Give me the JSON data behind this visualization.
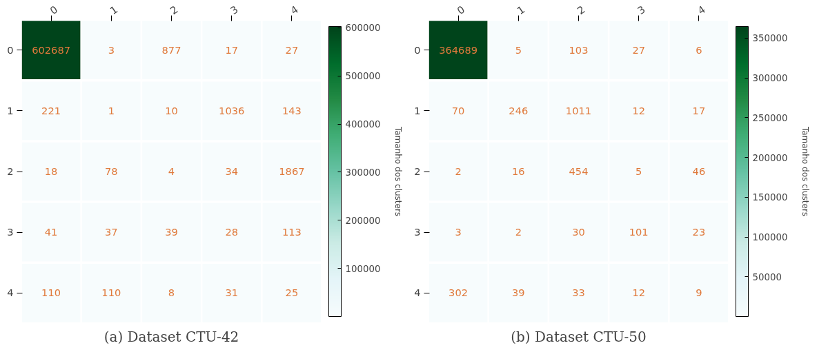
{
  "chart_data": [
    {
      "type": "heatmap",
      "categories": [
        "0",
        "1",
        "2",
        "3",
        "4"
      ],
      "y_categories": [
        "0",
        "1",
        "2",
        "3",
        "4"
      ],
      "cells": [
        [
          602687,
          3,
          877,
          17,
          27
        ],
        [
          221,
          1,
          10,
          1036,
          143
        ],
        [
          18,
          78,
          4,
          34,
          1867
        ],
        [
          41,
          37,
          39,
          28,
          113
        ],
        [
          110,
          110,
          8,
          31,
          25
        ]
      ],
      "clim": [
        0,
        602687
      ],
      "cticks": [
        100000,
        200000,
        300000,
        400000,
        500000,
        600000
      ],
      "clabel": "Tamanho dos clusters",
      "data_labels": true,
      "annotations": [
        "(a) Dataset CTU-42"
      ]
    },
    {
      "type": "heatmap",
      "categories": [
        "0",
        "1",
        "2",
        "3",
        "4"
      ],
      "y_categories": [
        "0",
        "1",
        "2",
        "3",
        "4"
      ],
      "cells": [
        [
          364689,
          5,
          103,
          27,
          6
        ],
        [
          70,
          246,
          1011,
          12,
          17
        ],
        [
          2,
          16,
          454,
          5,
          46
        ],
        [
          3,
          2,
          30,
          101,
          23
        ],
        [
          302,
          39,
          33,
          12,
          9
        ]
      ],
      "clim": [
        0,
        364689
      ],
      "cticks": [
        50000,
        100000,
        150000,
        200000,
        250000,
        300000,
        350000
      ],
      "clabel": "Tamanho dos clusters",
      "data_labels": true,
      "annotations": [
        "(b) Dataset CTU-50"
      ]
    }
  ]
}
